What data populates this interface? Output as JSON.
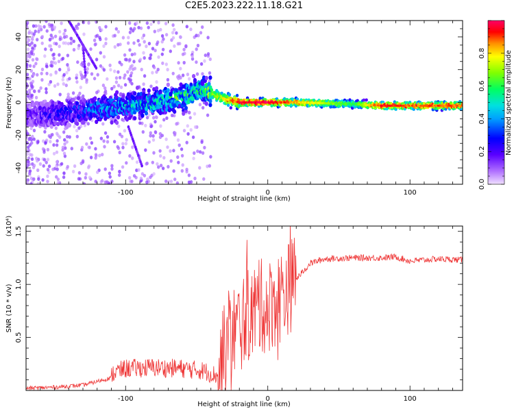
{
  "title": "C2E5.2023.222.11.18.G21",
  "chart_data": [
    {
      "type": "heatmap",
      "xlabel": "Height of straight line (km)",
      "ylabel": "Frequency (Hz)",
      "xlim": [
        -170,
        137
      ],
      "ylim": [
        -50,
        50
      ],
      "x_ticks": [
        -100,
        0,
        100
      ],
      "x_tick_labels": [
        "-100",
        "0",
        "100"
      ],
      "y_ticks": [
        -40,
        -20,
        0,
        20,
        40
      ],
      "y_tick_labels": [
        "-40",
        "-20",
        "0",
        "20",
        "40"
      ],
      "colorbar": {
        "label": "Normalized spectral amplitude",
        "range": [
          0,
          1
        ],
        "ticks": [
          0.0,
          0.2,
          0.4,
          0.6,
          0.8
        ],
        "tick_labels": [
          "0.0",
          "0.2",
          "0.4",
          "0.6",
          "0.8"
        ],
        "colormap": [
          "#e8d8ff",
          "#8a00ff",
          "#0000ff",
          "#00ccff",
          "#00ff66",
          "#66ff00",
          "#ffff00",
          "#ff8800",
          "#ff0000",
          "#ff0066"
        ]
      },
      "ridge": {
        "description_points_x_km": [
          -170,
          -140,
          -120,
          -100,
          -80,
          -60,
          -45,
          -38,
          -30,
          -20,
          0,
          20,
          60,
          80,
          100,
          137
        ],
        "center_freq_hz": [
          -8,
          -6,
          -4,
          -2,
          0,
          3,
          8,
          5,
          2,
          0,
          0,
          0,
          -1,
          -2,
          -2,
          -2
        ],
        "peak_amplitude": [
          0.15,
          0.25,
          0.35,
          0.4,
          0.45,
          0.55,
          0.5,
          0.7,
          0.8,
          0.95,
          1.0,
          0.85,
          0.6,
          0.95,
          0.9,
          0.9
        ]
      },
      "grid": false
    },
    {
      "type": "line",
      "xlabel": "Height of straight line (km)",
      "ylabel": "SNR (10 * v/v)",
      "y_scale_label": "(x10⁴)",
      "xlim": [
        -170,
        137
      ],
      "ylim": [
        0,
        1.55
      ],
      "x_ticks": [
        -100,
        0,
        100
      ],
      "x_tick_labels": [
        "-100",
        "0",
        "100"
      ],
      "y_ticks": [
        0.5,
        1.0,
        1.5
      ],
      "y_tick_labels": [
        "0.5",
        "1.0",
        "1.5"
      ],
      "color": "#ee3333",
      "series": [
        {
          "x": [
            -170,
            -150,
            -130,
            -110,
            -100,
            -80,
            -60,
            -45,
            -35,
            -30,
            -25,
            -20,
            -15,
            -10,
            -5,
            0,
            5,
            10,
            20,
            30,
            40,
            60,
            80,
            90,
            100,
            120,
            137
          ],
          "y": [
            0.02,
            0.03,
            0.05,
            0.12,
            0.17,
            0.18,
            0.17,
            0.15,
            0.1,
            0.4,
            0.55,
            0.6,
            0.7,
            0.75,
            0.8,
            0.78,
            0.85,
            0.9,
            1.05,
            1.2,
            1.24,
            1.25,
            1.25,
            1.26,
            1.22,
            1.24,
            1.23
          ]
        }
      ],
      "grid": false
    }
  ]
}
